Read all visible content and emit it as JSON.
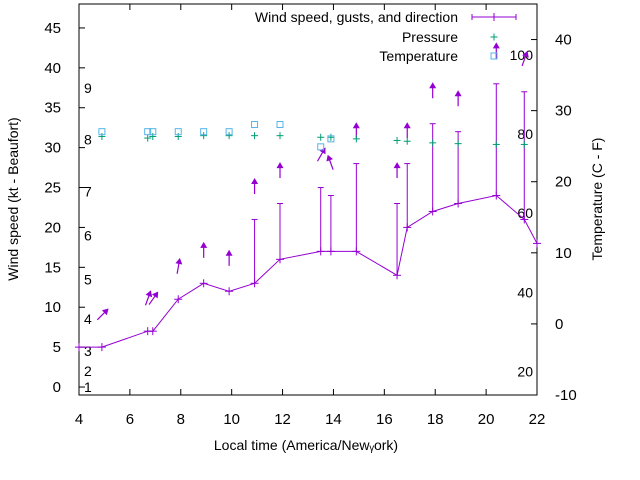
{
  "chart_data": {
    "type": "line",
    "xlabel": "Local time (America/Newᵧork)",
    "ylabel": "Wind speed (kt - Beaufort)",
    "y2label": "Temperature (C - F)",
    "xlim": [
      4,
      22
    ],
    "ylim": [
      -1,
      48
    ],
    "y2lim": [
      -10,
      45
    ],
    "x_ticks": [
      4,
      6,
      8,
      10,
      12,
      14,
      16,
      18,
      20,
      22
    ],
    "y_ticks": [
      0,
      5,
      10,
      15,
      20,
      25,
      30,
      35,
      40,
      45
    ],
    "y2_ticks": [
      -10,
      0,
      10,
      20,
      30,
      40
    ],
    "beaufort_labels": [
      {
        "value": 0,
        "label": "1"
      },
      {
        "value": 2,
        "label": "2"
      },
      {
        "value": 4.5,
        "label": "3"
      },
      {
        "value": 8.5,
        "label": "4"
      },
      {
        "value": 13.5,
        "label": "5"
      },
      {
        "value": 19,
        "label": "6"
      },
      {
        "value": 24.5,
        "label": "7"
      },
      {
        "value": 31,
        "label": "8"
      },
      {
        "value": 37.5,
        "label": "9"
      }
    ],
    "fahrenheit_labels": [
      {
        "value": -6.7,
        "label": "20"
      },
      {
        "value": 4.4,
        "label": "40"
      },
      {
        "value": 15.6,
        "label": "60"
      },
      {
        "value": 26.7,
        "label": "80"
      },
      {
        "value": 37.8,
        "label": "100"
      }
    ],
    "legend": [
      {
        "key": "wind",
        "label": "Wind speed, gusts, and direction"
      },
      {
        "key": "pressure",
        "label": "Pressure"
      },
      {
        "key": "temperature",
        "label": "Temperature"
      }
    ],
    "series": [
      {
        "name": "Wind speed, gusts, and direction",
        "color": "#9400d3",
        "points": [
          {
            "x": 4.0,
            "y": 5,
            "gust": 5,
            "dir": 225
          },
          {
            "x": 4.9,
            "y": 5,
            "gust": 5,
            "dir": 225
          },
          {
            "x": 6.7,
            "y": 7,
            "gust": 7,
            "dir": 200
          },
          {
            "x": 6.9,
            "y": 7,
            "gust": 7,
            "dir": 215
          },
          {
            "x": 7.9,
            "y": 11,
            "gust": 11,
            "dir": 190
          },
          {
            "x": 8.9,
            "y": 13,
            "gust": 13,
            "dir": 180
          },
          {
            "x": 9.9,
            "y": 12,
            "gust": 12,
            "dir": 180
          },
          {
            "x": 10.9,
            "y": 13,
            "gust": 21,
            "dir": 180
          },
          {
            "x": 11.9,
            "y": 16,
            "gust": 23,
            "dir": 180
          },
          {
            "x": 13.5,
            "y": 17,
            "gust": 25,
            "dir": 210
          },
          {
            "x": 13.9,
            "y": 17,
            "gust": 24,
            "dir": 160
          },
          {
            "x": 14.9,
            "y": 17,
            "gust": 28,
            "dir": 180
          },
          {
            "x": 16.5,
            "y": 14,
            "gust": 23,
            "dir": 180
          },
          {
            "x": 16.9,
            "y": 20,
            "gust": 28,
            "dir": 180
          },
          {
            "x": 17.9,
            "y": 22,
            "gust": 33,
            "dir": 180
          },
          {
            "x": 18.9,
            "y": 23,
            "gust": 32,
            "dir": 180
          },
          {
            "x": 20.4,
            "y": 24,
            "gust": 38,
            "dir": 180
          },
          {
            "x": 21.5,
            "y": 21,
            "gust": 37,
            "dir": 200
          },
          {
            "x": 22.0,
            "y": 18,
            "gust": 18,
            "dir": 180
          }
        ]
      },
      {
        "name": "Pressure",
        "color": "#009e73",
        "points": [
          {
            "x": 4.9,
            "y": 31.4
          },
          {
            "x": 6.7,
            "y": 31.2
          },
          {
            "x": 6.9,
            "y": 31.4
          },
          {
            "x": 7.9,
            "y": 31.4
          },
          {
            "x": 8.9,
            "y": 31.5
          },
          {
            "x": 9.9,
            "y": 31.5
          },
          {
            "x": 10.9,
            "y": 31.5
          },
          {
            "x": 11.9,
            "y": 31.5
          },
          {
            "x": 13.5,
            "y": 31.3
          },
          {
            "x": 13.9,
            "y": 31.3
          },
          {
            "x": 14.9,
            "y": 31.1
          },
          {
            "x": 16.5,
            "y": 30.9
          },
          {
            "x": 16.9,
            "y": 30.8
          },
          {
            "x": 17.9,
            "y": 30.6
          },
          {
            "x": 18.9,
            "y": 30.5
          },
          {
            "x": 20.4,
            "y": 30.4
          },
          {
            "x": 21.5,
            "y": 30.4
          }
        ]
      },
      {
        "name": "Temperature",
        "color": "#56b4e9",
        "points": [
          {
            "x": 4.9,
            "y": 32
          },
          {
            "x": 6.7,
            "y": 32
          },
          {
            "x": 6.9,
            "y": 32
          },
          {
            "x": 7.9,
            "y": 32
          },
          {
            "x": 8.9,
            "y": 32
          },
          {
            "x": 9.9,
            "y": 32
          },
          {
            "x": 10.9,
            "y": 32.9
          },
          {
            "x": 11.9,
            "y": 32.9
          },
          {
            "x": 13.5,
            "y": 30.1
          },
          {
            "x": 13.9,
            "y": 31.1
          }
        ]
      }
    ]
  }
}
